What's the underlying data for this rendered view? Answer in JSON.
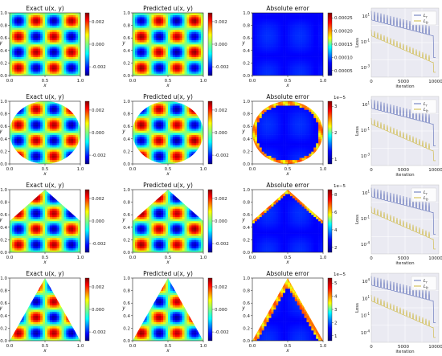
{
  "figure": {
    "rows": [
      {
        "id": "square",
        "domain": "square",
        "exact": {
          "title": "Exact u(x, y)",
          "cbar_ticks": [
            "0.002",
            "0.000",
            "-0.002"
          ]
        },
        "predicted": {
          "title": "Predicted u(x, y)",
          "cbar_ticks": [
            "0.002",
            "0.000",
            "-0.002"
          ]
        },
        "error": {
          "title": "Absolute error",
          "cbar_ticks": [
            "0.00025",
            "0.00020",
            "0.00015",
            "0.00010",
            "0.00005"
          ],
          "cbar_exp": ""
        },
        "loss": {
          "ylabel": "Loss",
          "xlabel": "iteration",
          "yticks": [
            "10^1",
            "10^-1",
            "10^-3"
          ],
          "xticks": [
            "0",
            "5000",
            "10000"
          ]
        }
      },
      {
        "id": "circle",
        "domain": "circle",
        "exact": {
          "title": "Exact u(x, y)",
          "cbar_ticks": [
            "0.002",
            "0.000",
            "-0.002"
          ]
        },
        "predicted": {
          "title": "Predicted u(x, y)",
          "cbar_ticks": [
            "0.002",
            "0.000",
            "-0.002"
          ]
        },
        "error": {
          "title": "Absolute error",
          "cbar_ticks": [
            "3",
            "2",
            "1"
          ],
          "cbar_exp": "1e−5"
        },
        "loss": {
          "ylabel": "Loss",
          "xlabel": "iteration",
          "yticks": [
            "10^1",
            "10^-1",
            "10^-3"
          ],
          "xticks": [
            "0",
            "5000",
            "10000"
          ]
        }
      },
      {
        "id": "pentagon",
        "domain": "pentagon",
        "exact": {
          "title": "Exact u(x, y)",
          "cbar_ticks": [
            "0.002",
            "0.000",
            "-0.002"
          ]
        },
        "predicted": {
          "title": "Predicted u(x, y)",
          "cbar_ticks": [
            "0.002",
            "0.000",
            "-0.002"
          ]
        },
        "error": {
          "title": "Absolute error",
          "cbar_ticks": [
            "8",
            "6",
            "4",
            "2"
          ],
          "cbar_exp": "1e−5"
        },
        "loss": {
          "ylabel": "Loss",
          "xlabel": "iteration",
          "yticks": [
            "10^1",
            "10^-1",
            "10^-4"
          ],
          "xticks": [
            "0",
            "5000",
            "10000"
          ]
        }
      },
      {
        "id": "triangle",
        "domain": "triangle",
        "exact": {
          "title": "Exact u(x, y)",
          "cbar_ticks": [
            "0.002",
            "0.000",
            "-0.002"
          ]
        },
        "predicted": {
          "title": "Predicted u(x, y)",
          "cbar_ticks": [
            "0.002",
            "0.000",
            "-0.002"
          ]
        },
        "error": {
          "title": "Absolute error",
          "cbar_ticks": [
            "5",
            "4",
            "3",
            "2",
            "1"
          ],
          "cbar_exp": "1e−5"
        },
        "loss": {
          "ylabel": "Loss",
          "xlabel": "iteration",
          "yticks": [
            "10^4",
            "10^1",
            "10^-1",
            "10^-4"
          ],
          "xticks": [
            "0",
            "5000",
            "10000"
          ]
        }
      }
    ],
    "axis": {
      "xlabel": "x",
      "ylabel": "y",
      "ticks": [
        "0.0",
        "0.2",
        "0.4",
        "0.6",
        "0.8",
        "1.0"
      ],
      "xticks": [
        "0.0",
        "0.5",
        "1.0"
      ]
    },
    "legend": [
      "L_r",
      "L_b"
    ]
  },
  "colors": {
    "series_lr": "#4c5fb0",
    "series_lb": "#c9b028",
    "error_bg": "#0c1f9e",
    "grid_bg": "#eaeaf2"
  },
  "chart_data": {
    "type": "heatmap",
    "panels": [
      "Exact u(x, y)",
      "Predicted u(x, y)",
      "Absolute error",
      "Loss"
    ],
    "domains": [
      "square",
      "circle",
      "pentagon",
      "triangle"
    ],
    "field_range": [
      -0.003,
      0.003
    ],
    "field_function": "u = 0.003 * sin(2πk·x) * sin(2πk·y), k = 2 (4×4 lobes on [0,1]²)",
    "x_range": [
      0,
      1
    ],
    "y_range": [
      0,
      1
    ],
    "error_max": [
      0.00028,
      3e-05,
      8e-05,
      5.5e-05
    ],
    "loss_iterations": [
      0,
      5000,
      10000
    ],
    "series": [
      {
        "name": "L_r",
        "values": [
          20,
          3,
          1,
          0.5,
          0.003
        ]
      },
      {
        "name": "L_b",
        "values": [
          0.5,
          0.01,
          0.003,
          0.001,
          0.0001
        ]
      }
    ]
  }
}
